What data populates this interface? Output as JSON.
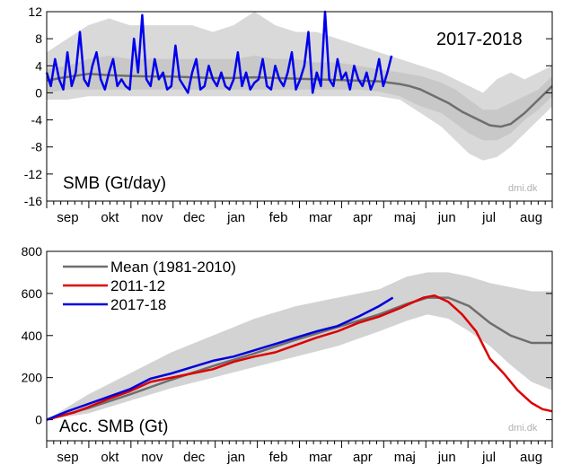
{
  "chart_data": [
    {
      "type": "line",
      "panel": "top",
      "title": "SMB (Gt/day)",
      "season_label": "2017-2018",
      "watermark": "dmi.dk",
      "ylim": [
        -16,
        12
      ],
      "yticks": [
        12,
        8,
        4,
        0,
        -4,
        -8,
        -12,
        -16
      ],
      "months": [
        "sep",
        "okt",
        "nov",
        "dec",
        "jan",
        "feb",
        "mar",
        "apr",
        "maj",
        "jun",
        "jul",
        "aug"
      ],
      "band_outer": {
        "name": "",
        "color": "#d9d9d9",
        "days": [
          0,
          15,
          30,
          45,
          60,
          75,
          90,
          105,
          120,
          135,
          150,
          165,
          180,
          195,
          210,
          225,
          240,
          255,
          270,
          285,
          295,
          305,
          315,
          325,
          335,
          345,
          355,
          365
        ],
        "lower": [
          -1,
          -1,
          -0.5,
          -0.5,
          -0.5,
          -0.5,
          -0.5,
          -0.5,
          -0.5,
          -0.5,
          -0.5,
          -0.5,
          -0.5,
          -0.5,
          -0.5,
          -0.5,
          -0.5,
          -1,
          -3,
          -5,
          -7,
          -9,
          -10,
          -9.5,
          -8,
          -6,
          -4,
          -2
        ],
        "upper": [
          6,
          8,
          10,
          11,
          10,
          10,
          10,
          10,
          9,
          10,
          12,
          10,
          9,
          9,
          8,
          7,
          6,
          5,
          4,
          3,
          2,
          1,
          0,
          2,
          3,
          2,
          3,
          4
        ]
      },
      "band_inner": {
        "name": "",
        "color": "#c8c8c8",
        "days": [
          0,
          15,
          30,
          45,
          60,
          75,
          90,
          105,
          120,
          135,
          150,
          165,
          180,
          195,
          210,
          225,
          240,
          255,
          270,
          285,
          295,
          305,
          315,
          325,
          335,
          345,
          355,
          365
        ],
        "lower": [
          0,
          0.5,
          0.5,
          0.5,
          0.5,
          0.5,
          0.5,
          0.5,
          0.5,
          0.5,
          0.5,
          0.5,
          0.5,
          0.5,
          0.5,
          0.5,
          0.2,
          -0.5,
          -2,
          -3,
          -4.5,
          -6,
          -7,
          -7,
          -6,
          -4,
          -2.5,
          -0.5
        ],
        "upper": [
          3.5,
          4,
          5,
          5.5,
          5,
          5,
          5,
          5,
          5,
          5,
          5.5,
          5,
          5,
          4.5,
          4.5,
          4,
          3.5,
          3,
          2.5,
          1.5,
          0.5,
          -1,
          -2.5,
          -2.5,
          -1.5,
          -0.5,
          0.5,
          2.5
        ]
      },
      "series": [
        {
          "name": "",
          "color": "#6e6e6e",
          "width": 2.5,
          "days": [
            0,
            10,
            20,
            30,
            45,
            60,
            75,
            90,
            105,
            120,
            135,
            150,
            165,
            180,
            195,
            210,
            225,
            240,
            255,
            262,
            270,
            280,
            290,
            300,
            310,
            320,
            328,
            335,
            345,
            355,
            365
          ],
          "values": [
            1.8,
            2.2,
            2.5,
            2.8,
            2.6,
            2.5,
            2.4,
            2.4,
            2.3,
            2.2,
            2.2,
            2.3,
            2.2,
            2.1,
            2.0,
            1.9,
            1.8,
            1.7,
            1.3,
            1.0,
            0.5,
            -0.5,
            -1.5,
            -2.8,
            -3.8,
            -4.8,
            -5.0,
            -4.6,
            -3.0,
            -1.0,
            1.0
          ]
        },
        {
          "name": "",
          "color": "#0000ee",
          "width": 2.5,
          "days": [
            0,
            3,
            6,
            9,
            12,
            15,
            18,
            21,
            24,
            27,
            30,
            33,
            36,
            39,
            42,
            45,
            48,
            51,
            54,
            57,
            60,
            63,
            66,
            69,
            72,
            75,
            78,
            81,
            84,
            87,
            90,
            93,
            96,
            99,
            102,
            105,
            108,
            111,
            114,
            117,
            120,
            123,
            126,
            129,
            132,
            135,
            138,
            141,
            144,
            147,
            150,
            153,
            156,
            159,
            162,
            165,
            168,
            171,
            174,
            177,
            180,
            183,
            186,
            189,
            192,
            195,
            198,
            201,
            204,
            207,
            210,
            213,
            216,
            219,
            222,
            225,
            228,
            231,
            234,
            237,
            240,
            243,
            246,
            249
          ],
          "values": [
            3,
            1,
            5,
            2,
            0.5,
            6,
            1,
            3,
            9,
            2,
            1,
            4,
            6,
            2,
            0.5,
            3,
            5,
            1,
            2,
            1,
            0.5,
            8,
            3,
            11.5,
            2,
            1,
            5,
            2,
            3,
            0.5,
            1,
            7,
            2,
            1,
            0,
            3,
            5,
            0.5,
            1,
            4,
            2,
            1,
            3,
            1,
            0.5,
            2,
            6,
            1,
            3,
            0.5,
            1.5,
            2,
            5,
            1,
            0.5,
            4,
            2,
            1,
            3,
            6,
            0.5,
            2,
            4,
            9,
            0,
            3,
            1,
            12,
            2,
            1,
            5,
            2,
            3,
            0.5,
            4,
            2,
            1,
            3,
            0.5,
            2,
            5,
            1,
            3,
            5.5
          ]
        }
      ]
    },
    {
      "type": "line",
      "panel": "bottom",
      "title": "Acc. SMB (Gt)",
      "watermark": "dmi.dk",
      "ylim": [
        -100,
        800
      ],
      "yticks": [
        800,
        600,
        400,
        200,
        0
      ],
      "months": [
        "sep",
        "okt",
        "nov",
        "dec",
        "jan",
        "feb",
        "mar",
        "apr",
        "maj",
        "jun",
        "jul",
        "aug"
      ],
      "legend": {
        "placement": "top-left"
      },
      "band": {
        "name": "",
        "color": "#d3d3d3",
        "days": [
          0,
          30,
          60,
          90,
          120,
          150,
          180,
          210,
          240,
          260,
          275,
          290,
          305,
          320,
          335,
          350,
          365
        ],
        "lower": [
          0,
          30,
          90,
          150,
          200,
          250,
          300,
          350,
          420,
          470,
          500,
          480,
          420,
          350,
          260,
          180,
          140
        ],
        "upper": [
          0,
          120,
          220,
          320,
          400,
          480,
          540,
          580,
          620,
          680,
          700,
          700,
          680,
          650,
          630,
          610,
          610
        ]
      },
      "series": [
        {
          "name": "Mean (1981-2010)",
          "color": "#6e6e6e",
          "width": 2.5,
          "days": [
            0,
            30,
            60,
            90,
            120,
            150,
            180,
            210,
            240,
            260,
            275,
            290,
            305,
            320,
            335,
            350,
            365
          ],
          "values": [
            0,
            55,
            120,
            190,
            255,
            315,
            380,
            440,
            500,
            550,
            580,
            580,
            540,
            460,
            400,
            365,
            365
          ]
        },
        {
          "name": "2011-12",
          "color": "#dd0000",
          "width": 2.5,
          "days": [
            0,
            20,
            30,
            45,
            60,
            75,
            90,
            105,
            120,
            135,
            150,
            165,
            180,
            195,
            210,
            225,
            240,
            255,
            265,
            272,
            280,
            290,
            300,
            310,
            320,
            330,
            340,
            350,
            358,
            365
          ],
          "values": [
            0,
            35,
            60,
            100,
            135,
            180,
            200,
            220,
            240,
            275,
            300,
            320,
            355,
            390,
            420,
            460,
            490,
            530,
            560,
            580,
            590,
            560,
            500,
            420,
            290,
            220,
            140,
            80,
            50,
            40
          ]
        },
        {
          "name": "2017-18",
          "color": "#0000dd",
          "width": 2.5,
          "days": [
            0,
            15,
            30,
            45,
            60,
            75,
            90,
            105,
            120,
            135,
            150,
            165,
            180,
            195,
            210,
            225,
            240,
            250
          ],
          "values": [
            0,
            40,
            75,
            110,
            145,
            195,
            220,
            250,
            280,
            300,
            330,
            360,
            390,
            420,
            445,
            490,
            540,
            580
          ]
        }
      ]
    }
  ]
}
